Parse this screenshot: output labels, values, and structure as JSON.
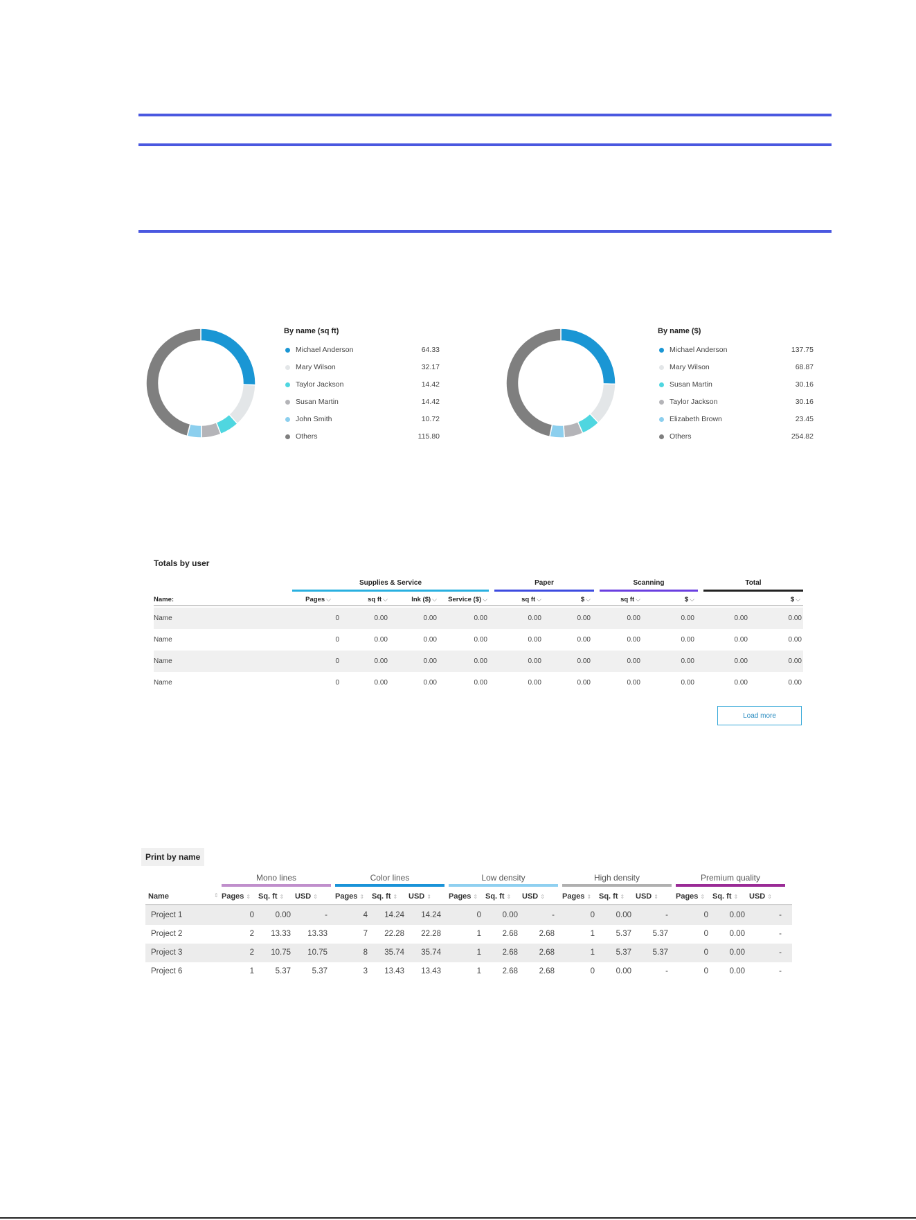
{
  "colors": {
    "rule": "#4a58e0",
    "chart1": [
      "#1a96d4",
      "#e3e6e8",
      "#4fd6e0",
      "#b4b4b8",
      "#8ccfee",
      "#7f7f7f"
    ],
    "chart2": [
      "#1a96d4",
      "#e3e6e8",
      "#4fd6e0",
      "#b4b4b8",
      "#8ccfee",
      "#7f7f7f"
    ],
    "supplies": "#29b0e0",
    "paper": "#3d4be0",
    "scanning": "#6a3fe0",
    "total": "#222222",
    "mono": "#c08fcc",
    "color_lines": "#1a93d8",
    "low_density": "#8fd0f0",
    "high_density": "#b0b0b0",
    "premium": "#9a2b96"
  },
  "chart_data": [
    {
      "type": "pie",
      "title": "By name (sq ft)",
      "categories": [
        "Michael Anderson",
        "Mary Wilson",
        "Taylor Jackson",
        "Susan Martin",
        "John Smith",
        "Others"
      ],
      "values": [
        64.33,
        32.17,
        14.42,
        14.42,
        10.72,
        115.8
      ]
    },
    {
      "type": "pie",
      "title": "By name ($)",
      "categories": [
        "Michael Anderson",
        "Mary Wilson",
        "Susan Martin",
        "Taylor Jackson",
        "Elizabeth Brown",
        "Others"
      ],
      "values": [
        137.75,
        68.87,
        30.16,
        30.16,
        23.45,
        254.82
      ]
    }
  ],
  "legend1": {
    "title": "By name (sq ft)",
    "items": [
      {
        "name": "Michael Anderson",
        "value": "64.33"
      },
      {
        "name": "Mary Wilson",
        "value": "32.17"
      },
      {
        "name": "Taylor Jackson",
        "value": "14.42"
      },
      {
        "name": "Susan Martin",
        "value": "14.42"
      },
      {
        "name": "John Smith",
        "value": "10.72"
      },
      {
        "name": "Others",
        "value": "115.80"
      }
    ]
  },
  "legend2": {
    "title": "By name ($)",
    "items": [
      {
        "name": "Michael Anderson",
        "value": "137.75"
      },
      {
        "name": "Mary Wilson",
        "value": "68.87"
      },
      {
        "name": "Susan Martin",
        "value": "30.16"
      },
      {
        "name": "Taylor Jackson",
        "value": "30.16"
      },
      {
        "name": "Elizabeth Brown",
        "value": "23.45"
      },
      {
        "name": "Others",
        "value": "254.82"
      }
    ]
  },
  "totals": {
    "title": "Totals by user",
    "groups": [
      "Supplies & Service",
      "Paper",
      "Scanning",
      "Total"
    ],
    "name_header": "Name:",
    "columns": [
      "Pages",
      "sq ft",
      "Ink ($)",
      "Service ($)",
      "sq ft",
      "$",
      "sq ft",
      "$",
      "$"
    ],
    "rows": [
      [
        "Name",
        "0",
        "0.00",
        "0.00",
        "0.00",
        "0.00",
        "0.00",
        "0.00",
        "0.00",
        "0.00",
        "0.00"
      ],
      [
        "Name",
        "0",
        "0.00",
        "0.00",
        "0.00",
        "0.00",
        "0.00",
        "0.00",
        "0.00",
        "0.00",
        "0.00"
      ],
      [
        "Name",
        "0",
        "0.00",
        "0.00",
        "0.00",
        "0.00",
        "0.00",
        "0.00",
        "0.00",
        "0.00",
        "0.00"
      ],
      [
        "Name",
        "0",
        "0.00",
        "0.00",
        "0.00",
        "0.00",
        "0.00",
        "0.00",
        "0.00",
        "0.00",
        "0.00"
      ]
    ],
    "load_more": "Load more"
  },
  "print": {
    "title": "Print by name",
    "groups": [
      "Mono lines",
      "Color lines",
      "Low density",
      "High density",
      "Premium quality"
    ],
    "name_header": "Name",
    "sub_headers": [
      "Pages",
      "Sq. ft",
      "USD"
    ],
    "rows": [
      [
        "Project 1",
        "0",
        "0.00",
        "-",
        "4",
        "14.24",
        "14.24",
        "0",
        "0.00",
        "-",
        "0",
        "0.00",
        "-",
        "0",
        "0.00",
        "-"
      ],
      [
        "Project 2",
        "2",
        "13.33",
        "13.33",
        "7",
        "22.28",
        "22.28",
        "1",
        "2.68",
        "2.68",
        "1",
        "5.37",
        "5.37",
        "0",
        "0.00",
        "-"
      ],
      [
        "Project 3",
        "2",
        "10.75",
        "10.75",
        "8",
        "35.74",
        "35.74",
        "1",
        "2.68",
        "2.68",
        "1",
        "5.37",
        "5.37",
        "0",
        "0.00",
        "-"
      ],
      [
        "Project 6",
        "1",
        "5.37",
        "5.37",
        "3",
        "13.43",
        "13.43",
        "1",
        "2.68",
        "2.68",
        "0",
        "0.00",
        "-",
        "0",
        "0.00",
        "-"
      ]
    ]
  }
}
